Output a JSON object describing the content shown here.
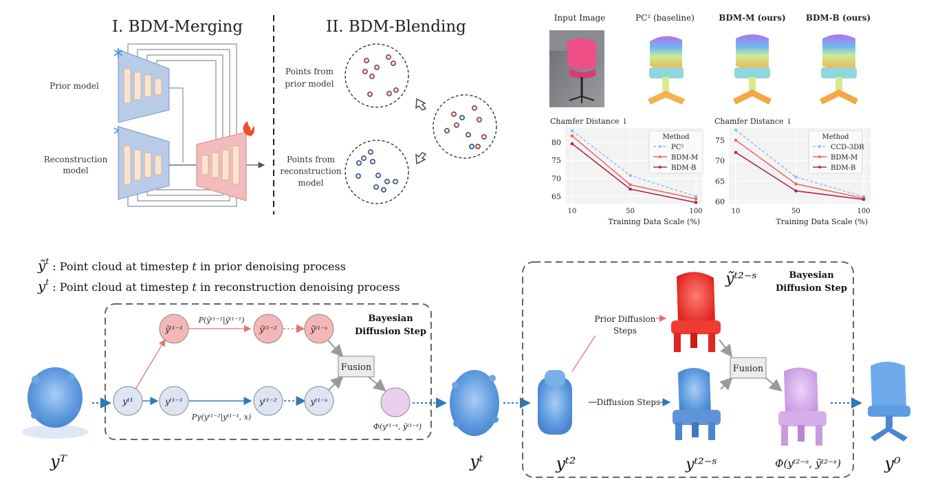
{
  "merging": {
    "title": "I. BDM-Merging",
    "prior_label": "Prior model",
    "recon_label_1": "Reconstruction",
    "recon_label_2": "model",
    "freeze_icon": "snowflake-icon",
    "train_icon": "fire-icon"
  },
  "blending": {
    "title": "II. BDM-Blending",
    "prior_points_1": "Points from",
    "prior_points_2": "prior model",
    "recon_points_1": "Points from",
    "recon_points_2": "reconstruction",
    "recon_points_3": "model"
  },
  "gallery": {
    "headers": [
      "Input Image",
      "PC² (baseline)",
      "BDM-M (ours)",
      "BDM-B (ours)"
    ]
  },
  "legend_text": {
    "line1_sym": "ỹ",
    "line1_sup": "t",
    "line1_text": " : Point cloud at timestep ",
    "line1_t": "t",
    "line1_rest": " in prior denoising process",
    "line2_sym": "y",
    "line2_sup": "t",
    "line2_text": " : Point cloud at timestep ",
    "line2_t": "t",
    "line2_rest": " in reconstruction denoising process"
  },
  "bds1": {
    "title_1": "Bayesian",
    "title_2": "Diffusion Step",
    "prior_prob": "P(ỹᵗ¹⁻²|ỹᵗ¹⁻¹)",
    "recon_prob": "Pγ(yᵗ¹⁻²|yᵗ¹⁻¹, x)",
    "fusion": "Fusion",
    "phi": "Φ(yᵗ¹⁻ˢ, ỹᵗ¹⁻ˢ)",
    "nodes_prior": [
      "ỹᵗ¹⁻¹",
      "ỹᵗ¹⁻²",
      "ỹᵗ¹⁻ˢ"
    ],
    "nodes_recon": [
      "yᵗ¹",
      "yᵗ¹⁻¹",
      "yᵗ¹⁻²",
      "yᵗ¹⁻ˢ"
    ]
  },
  "bds2": {
    "title_1": "Bayesian",
    "title_2": "Diffusion Step",
    "prior_steps_1": "Prior Diffusion",
    "prior_steps_2": "Steps",
    "diff_steps": "Diffusion Steps",
    "fusion": "Fusion",
    "label_prior": "ỹᵗ²⁻ˢ",
    "label_recon": "yᵗ²⁻ˢ",
    "label_phi": "Φ(yᵗ²⁻ˢ, ỹᵗ²⁻ˢ)",
    "label_yt2": "yᵗ²"
  },
  "bottom_labels": {
    "yT": "yᵀ",
    "yt": "yᵗ",
    "y0": "y⁰"
  },
  "colors": {
    "prior_red": "#e57373",
    "recon_blue": "#6fa6d8",
    "arrow_blue": "#2f78b7",
    "node_red_fill": "#f4b7b7",
    "node_blue_fill": "#dde4f3",
    "phi_fill": "#ead0ee",
    "box_pink": "#f2bcbc",
    "box_blue": "#b8cce8",
    "bar_fill": "#fbe3cf"
  },
  "chart_data": [
    {
      "type": "line",
      "title": "Chamfer Distance ↓",
      "xlabel": "Training Data Scale (%)",
      "ylabel": "",
      "x": [
        10,
        50,
        100
      ],
      "xticks": [
        "10",
        "50",
        "100"
      ],
      "yticks": [
        65,
        70,
        75,
        80
      ],
      "ylim": [
        63,
        84
      ],
      "grid": true,
      "legend_title": "Method",
      "legend_position": "top-right",
      "series": [
        {
          "name": "PC²",
          "values": [
            83.2,
            70.8,
            65.0
          ],
          "color": "#8fc3ec",
          "dashed": true
        },
        {
          "name": "BDM-M",
          "values": [
            81.8,
            68.2,
            64.3
          ],
          "color": "#ec6b5f",
          "dashed": false
        },
        {
          "name": "BDM-B",
          "values": [
            79.6,
            67.0,
            63.3
          ],
          "color": "#b3254e",
          "dashed": false
        }
      ]
    },
    {
      "type": "line",
      "title": "Chamfer Distance ↓",
      "xlabel": "Training Data Scale (%)",
      "ylabel": "",
      "x": [
        10,
        50,
        100
      ],
      "xticks": [
        "10",
        "50",
        "100"
      ],
      "yticks": [
        60,
        65,
        70,
        75
      ],
      "ylim": [
        59.5,
        78
      ],
      "grid": true,
      "legend_title": "Method",
      "legend_position": "top-right",
      "series": [
        {
          "name": "CCD-3DR",
          "values": [
            77.5,
            66.0,
            61.2
          ],
          "color": "#8fc3ec",
          "dashed": true
        },
        {
          "name": "BDM-M",
          "values": [
            75.0,
            64.3,
            60.8
          ],
          "color": "#ec6b5f",
          "dashed": false
        },
        {
          "name": "BDM-B",
          "values": [
            72.0,
            62.6,
            60.5
          ],
          "color": "#b3254e",
          "dashed": false
        }
      ]
    }
  ]
}
